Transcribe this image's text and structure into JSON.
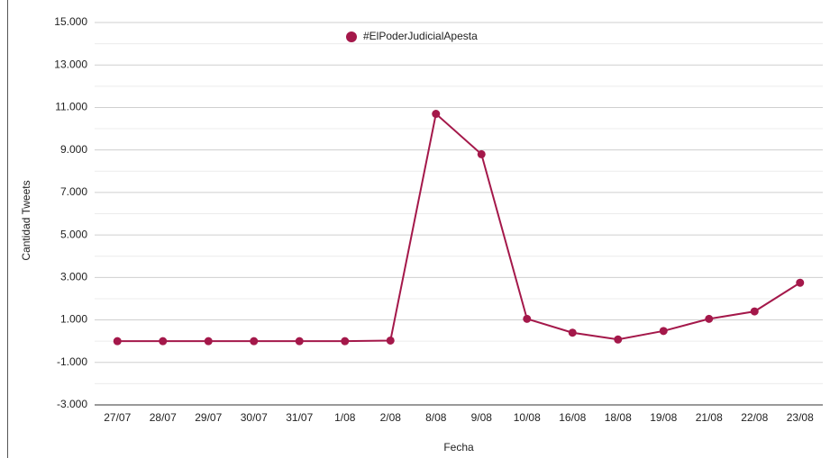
{
  "chart_data": {
    "type": "line",
    "x_label": "Fecha",
    "y_label": "Cantidad Tweets",
    "categories": [
      "27/07",
      "28/07",
      "29/07",
      "30/07",
      "31/07",
      "1/08",
      "2/08",
      "8/08",
      "9/08",
      "10/08",
      "16/08",
      "18/08",
      "19/08",
      "21/08",
      "22/08",
      "23/08"
    ],
    "series": [
      {
        "name": "#ElPoderJudicialApesta",
        "color": "#a4184a",
        "values": [
          0,
          0,
          0,
          0,
          0,
          0,
          30,
          10700,
          8800,
          1050,
          400,
          80,
          480,
          1050,
          1400,
          2750
        ]
      }
    ],
    "ylim": [
      -3000,
      15000
    ],
    "yticks": [
      {
        "value": -3000,
        "label": "-3.000"
      },
      {
        "value": -1000,
        "label": "-1.000"
      },
      {
        "value": 1000,
        "label": "1.000"
      },
      {
        "value": 3000,
        "label": "3.000"
      },
      {
        "value": 5000,
        "label": "5.000"
      },
      {
        "value": 7000,
        "label": "7.000"
      },
      {
        "value": 9000,
        "label": "9.000"
      },
      {
        "value": 11000,
        "label": "11.000"
      },
      {
        "value": 13000,
        "label": "13.000"
      },
      {
        "value": 15000,
        "label": "15.000"
      }
    ],
    "minor_yticks": [
      -2000,
      0,
      2000,
      4000,
      6000,
      8000,
      10000,
      12000,
      14000
    ],
    "grid": true,
    "legend": "top"
  }
}
